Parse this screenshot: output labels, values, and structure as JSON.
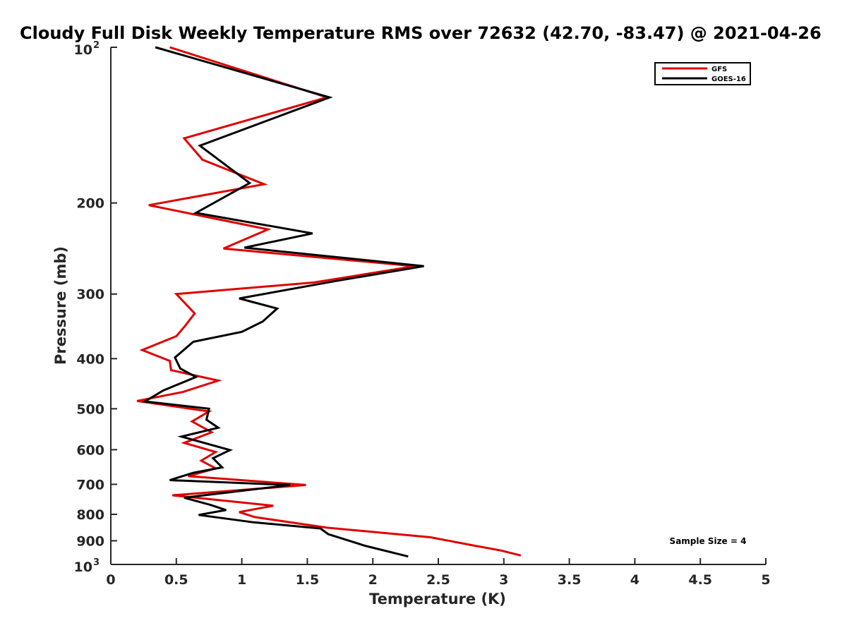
{
  "chart_data": {
    "type": "line",
    "title": "Cloudy Full Disk Weekly Temperature RMS over 72632 (42.70, -83.47) @ 2021-04-26",
    "xlabel": "Temperature (K)",
    "ylabel": "Pressure (mb)",
    "xlim": [
      0,
      5
    ],
    "ylim": [
      100,
      1000
    ],
    "y_scale": "log",
    "y_reversed": true,
    "grid": false,
    "legend_position": "top-right",
    "x_ticks": [
      "0",
      "0.5",
      "1",
      "1.5",
      "2",
      "2.5",
      "3",
      "3.5",
      "4",
      "4.5",
      "5"
    ],
    "y_ticks": [
      {
        "value": 100,
        "base": "10",
        "exp": "2"
      },
      {
        "value": 200,
        "label": "200"
      },
      {
        "value": 300,
        "label": "300"
      },
      {
        "value": 400,
        "label": "400"
      },
      {
        "value": 500,
        "label": "500"
      },
      {
        "value": 600,
        "label": "600"
      },
      {
        "value": 700,
        "label": "700"
      },
      {
        "value": 800,
        "label": "800"
      },
      {
        "value": 900,
        "label": "900"
      },
      {
        "value": 1000,
        "base": "10",
        "exp": "3"
      }
    ],
    "annotation": "Sample Size = 4",
    "series": [
      {
        "name": "GFS",
        "color": "#e00000",
        "points": [
          [
            0.45,
            100
          ],
          [
            1.65,
            125
          ],
          [
            0.56,
            150
          ],
          [
            0.7,
            165
          ],
          [
            1.17,
            184
          ],
          [
            0.29,
            202
          ],
          [
            1.2,
            225
          ],
          [
            0.86,
            245
          ],
          [
            2.32,
            265
          ],
          [
            1.55,
            285
          ],
          [
            0.5,
            300
          ],
          [
            0.64,
            327
          ],
          [
            0.57,
            345
          ],
          [
            0.5,
            362
          ],
          [
            0.24,
            385
          ],
          [
            0.45,
            404
          ],
          [
            0.46,
            421
          ],
          [
            0.82,
            441
          ],
          [
            0.55,
            464
          ],
          [
            0.2,
            483
          ],
          [
            0.75,
            506
          ],
          [
            0.62,
            529
          ],
          [
            0.77,
            555
          ],
          [
            0.56,
            582
          ],
          [
            0.8,
            606
          ],
          [
            0.69,
            630
          ],
          [
            0.8,
            652
          ],
          [
            0.59,
            675
          ],
          [
            1.49,
            702
          ],
          [
            0.47,
            735
          ],
          [
            1.24,
            770
          ],
          [
            0.98,
            792
          ],
          [
            1.1,
            810
          ],
          [
            1.65,
            849
          ],
          [
            2.44,
            886
          ],
          [
            2.74,
            916
          ],
          [
            2.98,
            940
          ],
          [
            3.13,
            961
          ]
        ]
      },
      {
        "name": "GOES-16",
        "color": "#000000",
        "points": [
          [
            0.34,
            100
          ],
          [
            1.67,
            125
          ],
          [
            0.68,
            155
          ],
          [
            1.06,
            183
          ],
          [
            0.65,
            209
          ],
          [
            1.54,
            229
          ],
          [
            1.02,
            244
          ],
          [
            2.39,
            265
          ],
          [
            1.72,
            283
          ],
          [
            0.98,
            306
          ],
          [
            1.27,
            320
          ],
          [
            1.16,
            339
          ],
          [
            1.0,
            355
          ],
          [
            0.63,
            371
          ],
          [
            0.49,
            398
          ],
          [
            0.53,
            418
          ],
          [
            0.65,
            434
          ],
          [
            0.4,
            461
          ],
          [
            0.26,
            484
          ],
          [
            0.75,
            500
          ],
          [
            0.73,
            525
          ],
          [
            0.82,
            544
          ],
          [
            0.54,
            566
          ],
          [
            0.91,
            601
          ],
          [
            0.78,
            623
          ],
          [
            0.85,
            649
          ],
          [
            0.63,
            665
          ],
          [
            0.45,
            687
          ],
          [
            1.37,
            702
          ],
          [
            0.56,
            743
          ],
          [
            0.76,
            767
          ],
          [
            0.88,
            785
          ],
          [
            0.67,
            802
          ],
          [
            1.09,
            829
          ],
          [
            1.6,
            852
          ],
          [
            1.66,
            874
          ],
          [
            1.94,
            920
          ],
          [
            2.27,
            965
          ]
        ]
      }
    ]
  }
}
